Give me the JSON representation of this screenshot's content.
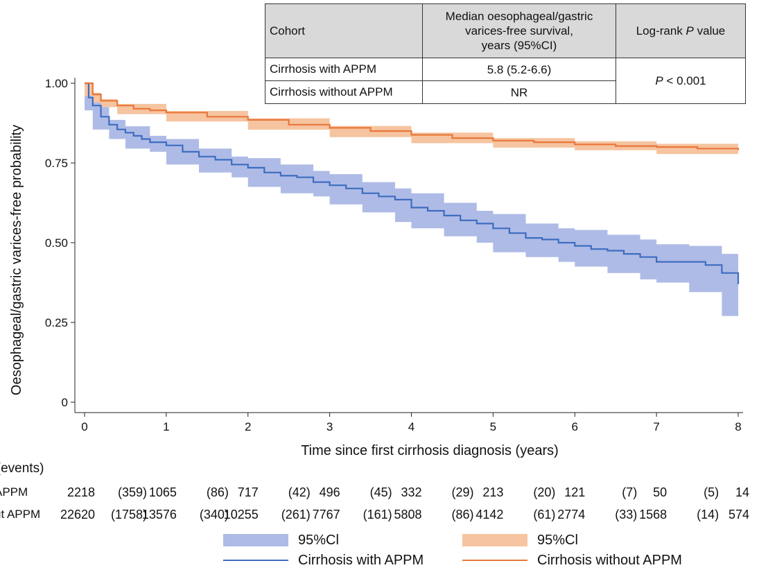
{
  "table": {
    "header": {
      "cohort": "Cohort",
      "median_line1": "Median oesophageal/gastric",
      "median_line2": "varices-free survival,",
      "median_line3": "years (95%CI)",
      "pvalue_prefix": "Log-rank ",
      "pvalue_p": "P",
      "pvalue_suffix": " value"
    },
    "rows": [
      {
        "cohort": "Cirrhosis with APPM",
        "median": "5.8 (5.2-6.6)"
      },
      {
        "cohort": "Cirrhosis without APPM",
        "median": "NR"
      }
    ],
    "pvalue_p": "P",
    "pvalue_rest": " < 0.001"
  },
  "chart_data": {
    "type": "line",
    "title": "",
    "xlabel": "Time since first cirrhosis diagnosis (years)",
    "ylabel": "Oesophageal/gastric varices-free probability",
    "xlim": [
      0,
      8
    ],
    "ylim": [
      0,
      1
    ],
    "x_ticks": [
      0,
      1,
      2,
      3,
      4,
      5,
      6,
      7,
      8
    ],
    "y_ticks": [
      0,
      0.25,
      0.5,
      0.75,
      1.0
    ],
    "y_tick_labels": [
      "0",
      "0.25",
      "0.50",
      "0.75",
      "1.00"
    ],
    "grid": false,
    "series": [
      {
        "name": "Cirrhosis with APPM",
        "color": "#3d6cc0",
        "ci_color": "#aebbe6",
        "points": [
          [
            0,
            1.0
          ],
          [
            0.05,
            0.955
          ],
          [
            0.1,
            0.93
          ],
          [
            0.2,
            0.895
          ],
          [
            0.3,
            0.87
          ],
          [
            0.4,
            0.855
          ],
          [
            0.5,
            0.845
          ],
          [
            0.6,
            0.835
          ],
          [
            0.7,
            0.825
          ],
          [
            0.8,
            0.815
          ],
          [
            1.0,
            0.805
          ],
          [
            1.2,
            0.785
          ],
          [
            1.4,
            0.77
          ],
          [
            1.6,
            0.76
          ],
          [
            1.8,
            0.745
          ],
          [
            2.0,
            0.735
          ],
          [
            2.2,
            0.72
          ],
          [
            2.4,
            0.71
          ],
          [
            2.6,
            0.705
          ],
          [
            2.8,
            0.69
          ],
          [
            3.0,
            0.68
          ],
          [
            3.2,
            0.67
          ],
          [
            3.4,
            0.655
          ],
          [
            3.6,
            0.645
          ],
          [
            3.8,
            0.635
          ],
          [
            4.0,
            0.61
          ],
          [
            4.2,
            0.6
          ],
          [
            4.4,
            0.585
          ],
          [
            4.6,
            0.57
          ],
          [
            4.8,
            0.56
          ],
          [
            5.0,
            0.545
          ],
          [
            5.2,
            0.53
          ],
          [
            5.4,
            0.515
          ],
          [
            5.6,
            0.51
          ],
          [
            5.8,
            0.5
          ],
          [
            6.0,
            0.49
          ],
          [
            6.2,
            0.48
          ],
          [
            6.4,
            0.475
          ],
          [
            6.6,
            0.465
          ],
          [
            6.8,
            0.455
          ],
          [
            7.0,
            0.44
          ],
          [
            7.2,
            0.44
          ],
          [
            7.4,
            0.44
          ],
          [
            7.6,
            0.43
          ],
          [
            7.8,
            0.405
          ],
          [
            8.0,
            0.37
          ]
        ],
        "ci_upper": [
          [
            0,
            1.0
          ],
          [
            0.1,
            0.945
          ],
          [
            0.3,
            0.885
          ],
          [
            0.5,
            0.865
          ],
          [
            0.8,
            0.835
          ],
          [
            1.0,
            0.825
          ],
          [
            1.4,
            0.795
          ],
          [
            1.8,
            0.77
          ],
          [
            2.0,
            0.765
          ],
          [
            2.4,
            0.745
          ],
          [
            2.8,
            0.725
          ],
          [
            3.0,
            0.715
          ],
          [
            3.4,
            0.69
          ],
          [
            3.8,
            0.67
          ],
          [
            4.0,
            0.655
          ],
          [
            4.4,
            0.625
          ],
          [
            4.8,
            0.6
          ],
          [
            5.0,
            0.59
          ],
          [
            5.4,
            0.56
          ],
          [
            5.8,
            0.545
          ],
          [
            6.0,
            0.54
          ],
          [
            6.4,
            0.525
          ],
          [
            6.8,
            0.51
          ],
          [
            7.0,
            0.495
          ],
          [
            7.4,
            0.49
          ],
          [
            7.8,
            0.465
          ],
          [
            8.0,
            0.44
          ]
        ],
        "ci_lower": [
          [
            0,
            1.0
          ],
          [
            0.1,
            0.915
          ],
          [
            0.3,
            0.855
          ],
          [
            0.5,
            0.825
          ],
          [
            0.8,
            0.795
          ],
          [
            1.0,
            0.785
          ],
          [
            1.4,
            0.745
          ],
          [
            1.8,
            0.72
          ],
          [
            2.0,
            0.705
          ],
          [
            2.4,
            0.675
          ],
          [
            2.8,
            0.655
          ],
          [
            3.0,
            0.645
          ],
          [
            3.4,
            0.62
          ],
          [
            3.8,
            0.595
          ],
          [
            4.0,
            0.565
          ],
          [
            4.4,
            0.545
          ],
          [
            4.8,
            0.52
          ],
          [
            5.0,
            0.5
          ],
          [
            5.4,
            0.47
          ],
          [
            5.8,
            0.455
          ],
          [
            6.0,
            0.44
          ],
          [
            6.4,
            0.425
          ],
          [
            6.8,
            0.405
          ],
          [
            7.0,
            0.385
          ],
          [
            7.4,
            0.375
          ],
          [
            7.8,
            0.345
          ],
          [
            8.0,
            0.27
          ]
        ]
      },
      {
        "name": "Cirrhosis without APPM",
        "color": "#e8773a",
        "ci_color": "#f6c4a0",
        "points": [
          [
            0,
            1.0
          ],
          [
            0.1,
            0.965
          ],
          [
            0.2,
            0.945
          ],
          [
            0.4,
            0.93
          ],
          [
            0.6,
            0.92
          ],
          [
            0.8,
            0.915
          ],
          [
            1.0,
            0.908
          ],
          [
            1.5,
            0.895
          ],
          [
            2.0,
            0.885
          ],
          [
            2.5,
            0.87
          ],
          [
            3.0,
            0.86
          ],
          [
            3.5,
            0.85
          ],
          [
            4.0,
            0.838
          ],
          [
            4.5,
            0.828
          ],
          [
            5.0,
            0.82
          ],
          [
            5.5,
            0.815
          ],
          [
            6.0,
            0.808
          ],
          [
            6.5,
            0.803
          ],
          [
            7.0,
            0.8
          ],
          [
            7.5,
            0.795
          ],
          [
            8.0,
            0.79
          ]
        ],
        "ci_upper": [
          [
            0,
            1.0
          ],
          [
            0.1,
            0.97
          ],
          [
            0.2,
            0.95
          ],
          [
            0.4,
            0.935
          ],
          [
            1.0,
            0.913
          ],
          [
            2.0,
            0.89
          ],
          [
            3.0,
            0.866
          ],
          [
            4.0,
            0.845
          ],
          [
            5.0,
            0.828
          ],
          [
            6.0,
            0.818
          ],
          [
            7.0,
            0.81
          ],
          [
            8.0,
            0.8
          ]
        ],
        "ci_lower": [
          [
            0,
            1.0
          ],
          [
            0.1,
            0.96
          ],
          [
            0.2,
            0.94
          ],
          [
            0.4,
            0.925
          ],
          [
            1.0,
            0.903
          ],
          [
            2.0,
            0.88
          ],
          [
            3.0,
            0.854
          ],
          [
            4.0,
            0.831
          ],
          [
            5.0,
            0.812
          ],
          [
            6.0,
            0.798
          ],
          [
            7.0,
            0.79
          ],
          [
            8.0,
            0.778
          ]
        ]
      }
    ],
    "legend": {
      "ci_label": "95%Cl",
      "items": [
        "Cirrhosis with APPM",
        "Cirrhosis without APPM"
      ]
    }
  },
  "risk_table": {
    "title": "k (events)",
    "rows": [
      {
        "label": "APPM",
        "cells": [
          "2218",
          "(359)",
          "1065",
          "(86)",
          "717",
          "(42)",
          "496",
          "(45)",
          "332",
          "(29)",
          "213",
          "(20)",
          "121",
          "(7)",
          "50",
          "(5)",
          "14"
        ]
      },
      {
        "label": "ut APPM",
        "cells": [
          "22620",
          "(1758)",
          "13576",
          "(340)",
          "10255",
          "(261)",
          "7767",
          "(161)",
          "5808",
          "(86)",
          "4142",
          "(61)",
          "2774",
          "(33)",
          "1568",
          "(14)",
          "574"
        ]
      }
    ]
  }
}
